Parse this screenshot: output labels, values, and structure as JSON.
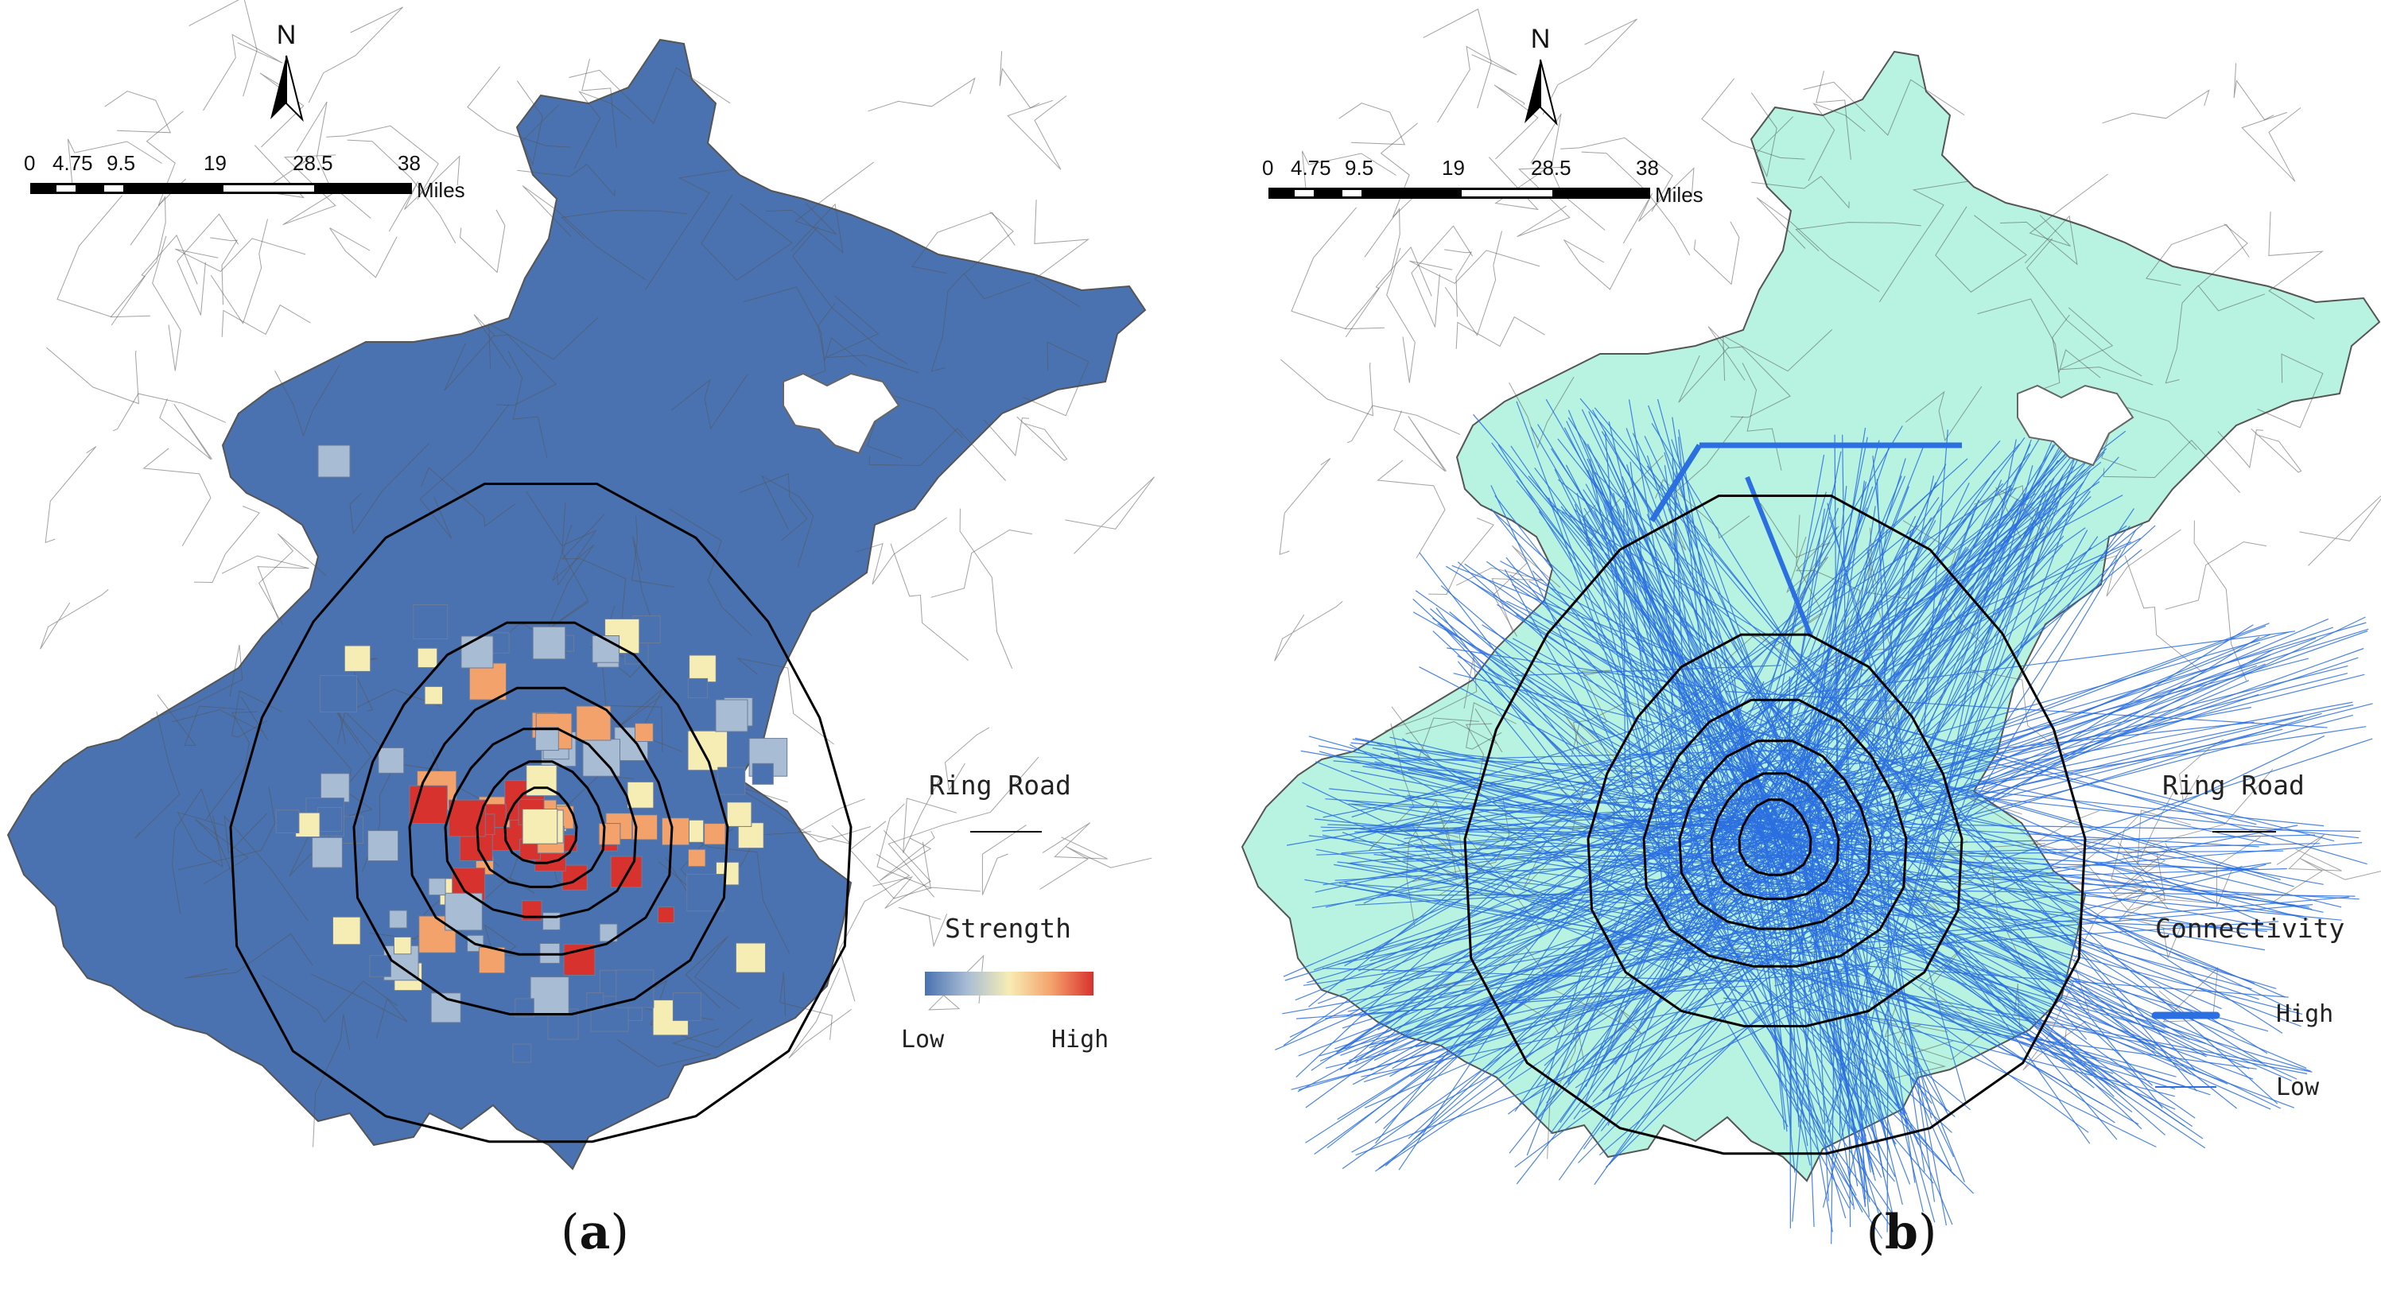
{
  "panels": {
    "a": {
      "caption_letter": "a",
      "legend": {
        "ring_road_label": "Ring Road",
        "strength_title": "Strength",
        "low_label": "Low",
        "high_label": "High"
      },
      "colors": {
        "base_fill": "#4a72b0",
        "ramp": [
          "#4a72b0",
          "#a8bcd4",
          "#f6edb4",
          "#f4a26c",
          "#d7322e"
        ]
      }
    },
    "b": {
      "caption_letter": "b",
      "legend": {
        "ring_road_label": "Ring Road",
        "connectivity_title": "Connectivity",
        "high_label": "High",
        "low_label": "Low"
      },
      "colors": {
        "base_fill": "#b7f3e0",
        "line_color": "#2b6fe0"
      }
    }
  },
  "map_common": {
    "north_label": "N",
    "scale_ticks": [
      "0",
      "4.75",
      "9.5",
      "19",
      "28.5",
      "38"
    ],
    "scale_unit": "Miles",
    "ring_road_color": "#000000",
    "district_border_color": "#555555"
  }
}
